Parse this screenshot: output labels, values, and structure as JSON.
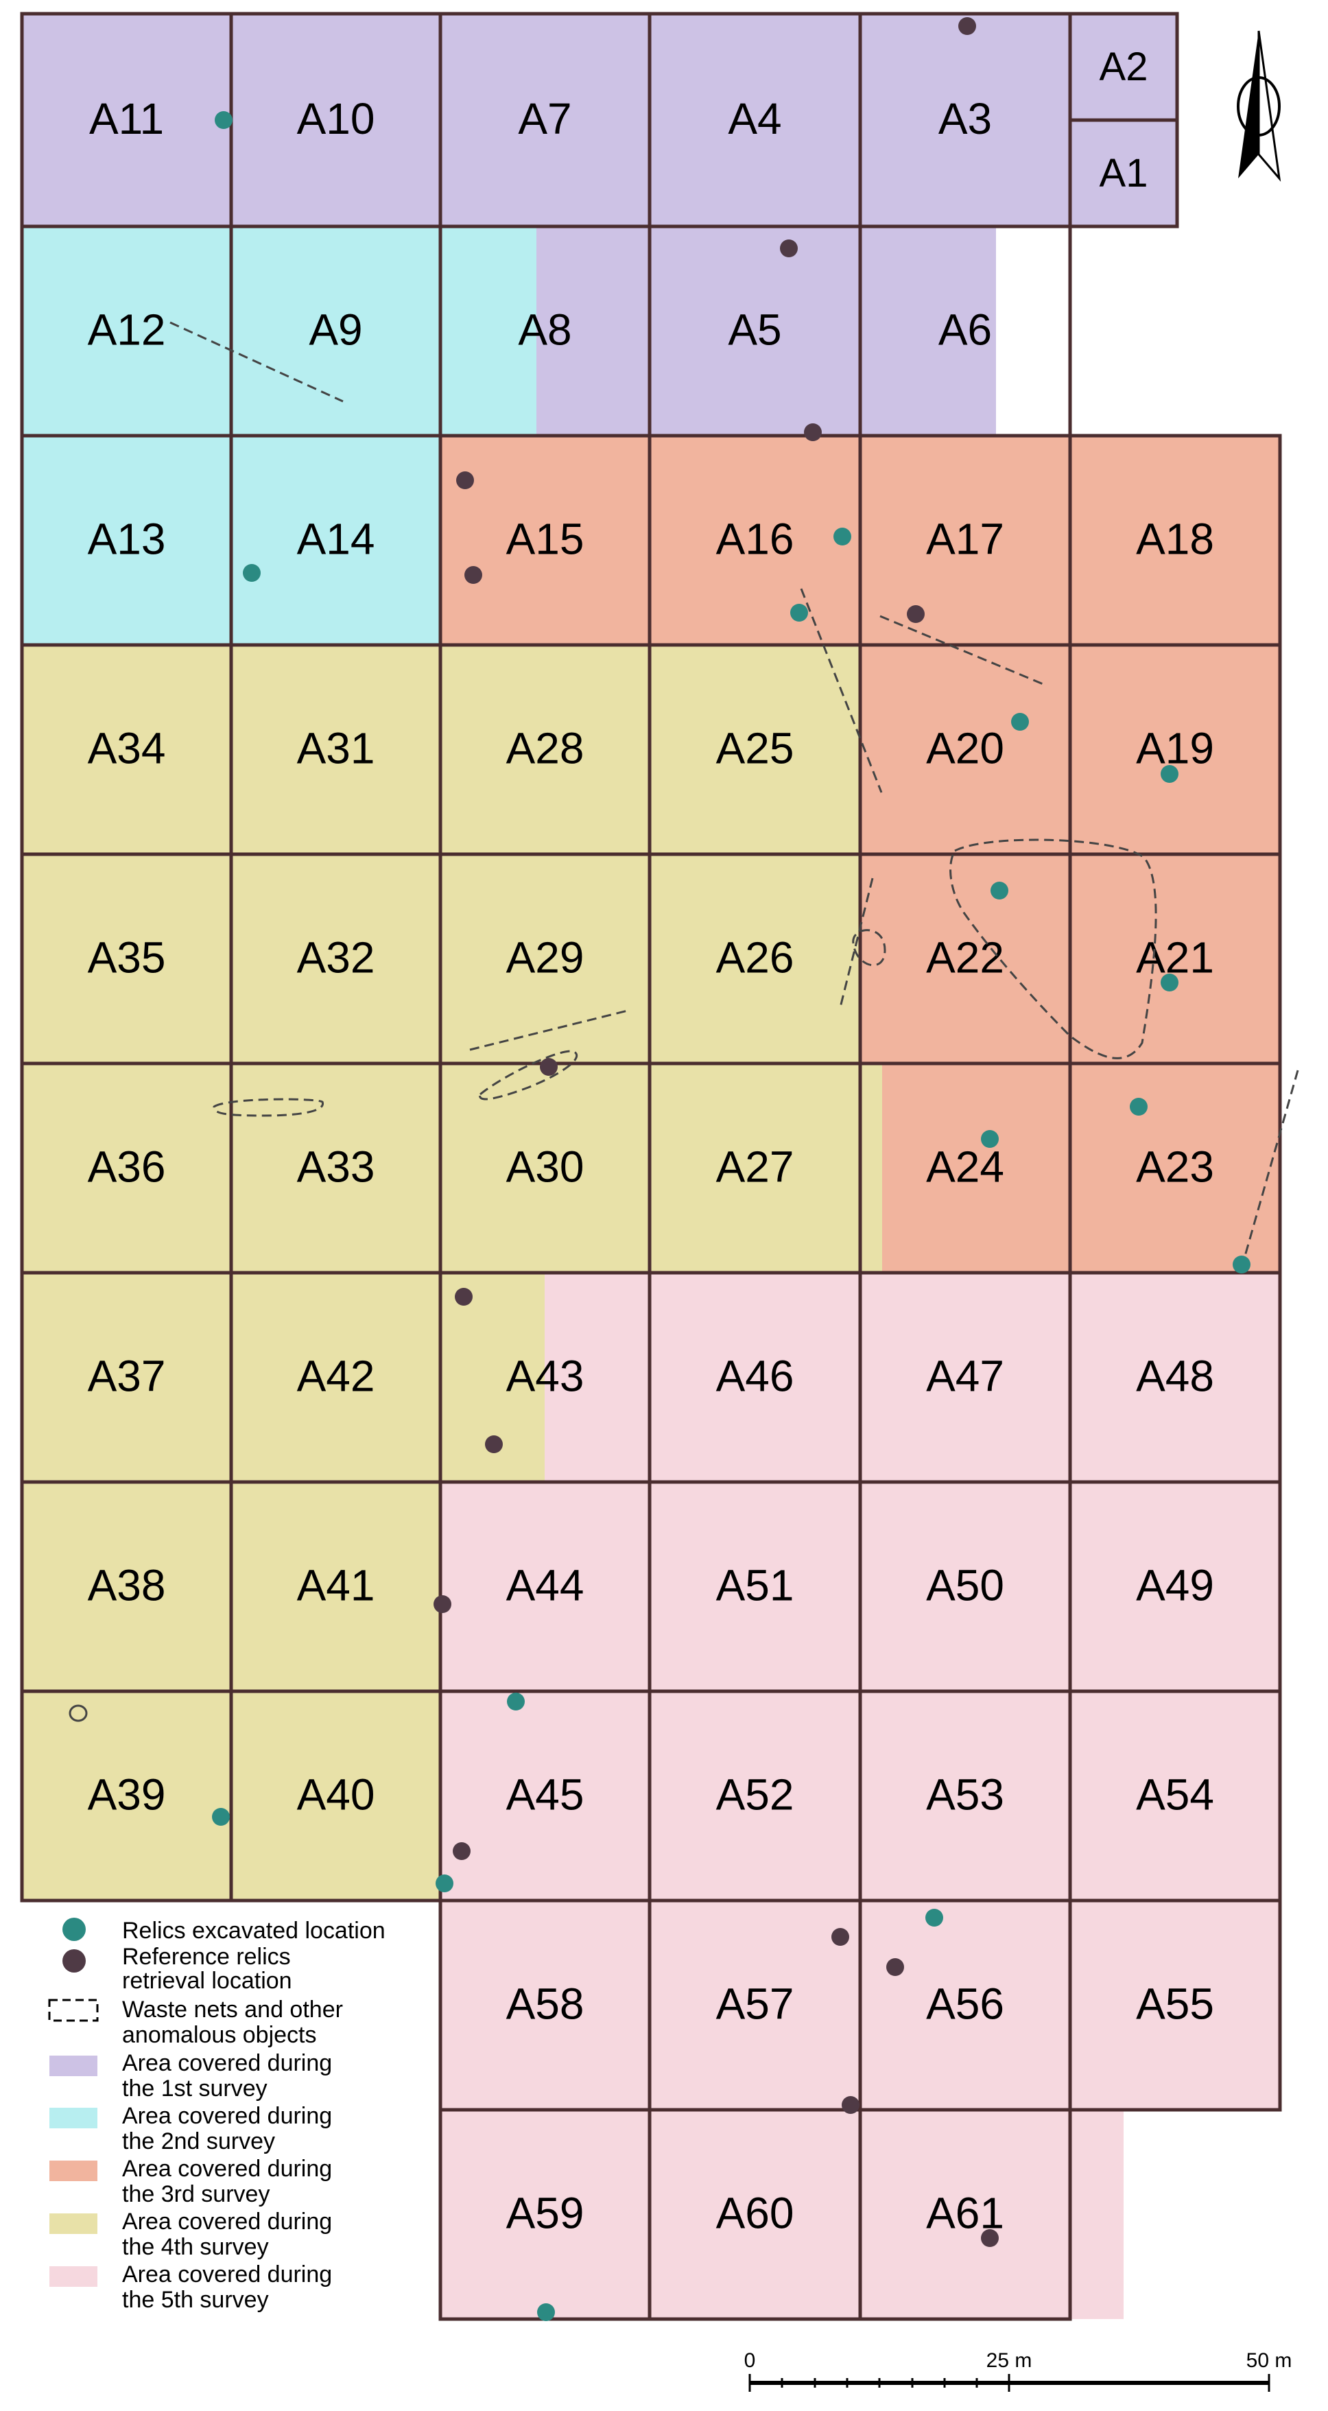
{
  "colors": {
    "survey1": "#cdc2e5",
    "survey2": "#b7eef0",
    "survey3": "#f1b49e",
    "survey4": "#e8e1a8",
    "survey5": "#f6d8df",
    "grid": "#4a2d2f",
    "excavated": "#2b8a82",
    "reference": "#4f3a45",
    "waste": "#444444"
  },
  "cells": [
    {
      "id": "A11",
      "c": 0,
      "r": 0,
      "s": 1
    },
    {
      "id": "A10",
      "c": 1,
      "r": 0,
      "s": 1
    },
    {
      "id": "A7",
      "c": 2,
      "r": 0,
      "s": 1
    },
    {
      "id": "A4",
      "c": 3,
      "r": 0,
      "s": 1
    },
    {
      "id": "A3",
      "c": 4,
      "r": 0,
      "s": 1
    },
    {
      "id": "A12",
      "c": 0,
      "r": 1,
      "s": 2
    },
    {
      "id": "A9",
      "c": 1,
      "r": 1,
      "s": 2
    },
    {
      "id": "A8",
      "c": 2,
      "r": 1,
      "s": 1
    },
    {
      "id": "A5",
      "c": 3,
      "r": 1,
      "s": 1
    },
    {
      "id": "A6",
      "c": 4,
      "r": 1,
      "s": 1
    },
    {
      "id": "A13",
      "c": 0,
      "r": 2,
      "s": 2
    },
    {
      "id": "A14",
      "c": 1,
      "r": 2,
      "s": 2
    },
    {
      "id": "A15",
      "c": 2,
      "r": 2,
      "s": 3
    },
    {
      "id": "A16",
      "c": 3,
      "r": 2,
      "s": 3
    },
    {
      "id": "A17",
      "c": 4,
      "r": 2,
      "s": 3
    },
    {
      "id": "A18",
      "c": 5,
      "r": 2,
      "s": 3
    },
    {
      "id": "A34",
      "c": 0,
      "r": 3,
      "s": 4
    },
    {
      "id": "A31",
      "c": 1,
      "r": 3,
      "s": 4
    },
    {
      "id": "A28",
      "c": 2,
      "r": 3,
      "s": 4
    },
    {
      "id": "A25",
      "c": 3,
      "r": 3,
      "s": 4
    },
    {
      "id": "A20",
      "c": 4,
      "r": 3,
      "s": 3
    },
    {
      "id": "A19",
      "c": 5,
      "r": 3,
      "s": 3
    },
    {
      "id": "A35",
      "c": 0,
      "r": 4,
      "s": 4
    },
    {
      "id": "A32",
      "c": 1,
      "r": 4,
      "s": 4
    },
    {
      "id": "A29",
      "c": 2,
      "r": 4,
      "s": 4
    },
    {
      "id": "A26",
      "c": 3,
      "r": 4,
      "s": 4
    },
    {
      "id": "A22",
      "c": 4,
      "r": 4,
      "s": 3
    },
    {
      "id": "A21",
      "c": 5,
      "r": 4,
      "s": 3
    },
    {
      "id": "A36",
      "c": 0,
      "r": 5,
      "s": 4
    },
    {
      "id": "A33",
      "c": 1,
      "r": 5,
      "s": 4
    },
    {
      "id": "A30",
      "c": 2,
      "r": 5,
      "s": 4
    },
    {
      "id": "A27",
      "c": 3,
      "r": 5,
      "s": 4
    },
    {
      "id": "A24",
      "c": 4,
      "r": 5,
      "s": 3
    },
    {
      "id": "A23",
      "c": 5,
      "r": 5,
      "s": 3
    },
    {
      "id": "A37",
      "c": 0,
      "r": 6,
      "s": 4
    },
    {
      "id": "A42",
      "c": 1,
      "r": 6,
      "s": 4
    },
    {
      "id": "A43",
      "c": 2,
      "r": 6,
      "s": 5
    },
    {
      "id": "A46",
      "c": 3,
      "r": 6,
      "s": 5
    },
    {
      "id": "A47",
      "c": 4,
      "r": 6,
      "s": 5
    },
    {
      "id": "A48",
      "c": 5,
      "r": 6,
      "s": 5
    },
    {
      "id": "A38",
      "c": 0,
      "r": 7,
      "s": 4
    },
    {
      "id": "A41",
      "c": 1,
      "r": 7,
      "s": 4
    },
    {
      "id": "A44",
      "c": 2,
      "r": 7,
      "s": 5
    },
    {
      "id": "A51",
      "c": 3,
      "r": 7,
      "s": 5
    },
    {
      "id": "A50",
      "c": 4,
      "r": 7,
      "s": 5
    },
    {
      "id": "A49",
      "c": 5,
      "r": 7,
      "s": 5
    },
    {
      "id": "A39",
      "c": 0,
      "r": 8,
      "s": 4
    },
    {
      "id": "A40",
      "c": 1,
      "r": 8,
      "s": 4
    },
    {
      "id": "A45",
      "c": 2,
      "r": 8,
      "s": 5
    },
    {
      "id": "A52",
      "c": 3,
      "r": 8,
      "s": 5
    },
    {
      "id": "A53",
      "c": 4,
      "r": 8,
      "s": 5
    },
    {
      "id": "A54",
      "c": 5,
      "r": 8,
      "s": 5
    },
    {
      "id": "A58",
      "c": 2,
      "r": 9,
      "s": 5
    },
    {
      "id": "A57",
      "c": 3,
      "r": 9,
      "s": 5
    },
    {
      "id": "A56",
      "c": 4,
      "r": 9,
      "s": 5
    },
    {
      "id": "A55",
      "c": 5,
      "r": 9,
      "s": 5
    },
    {
      "id": "A59",
      "c": 2,
      "r": 10,
      "s": 5
    },
    {
      "id": "A60",
      "c": 3,
      "r": 10,
      "s": 5
    },
    {
      "id": "A61",
      "c": 4,
      "r": 10,
      "s": 5
    }
  ],
  "small_cells": [
    {
      "id": "A2",
      "s": 1
    },
    {
      "id": "A1",
      "s": 1
    }
  ],
  "legend": {
    "excavated": "Relics excavated location",
    "reference": [
      "Reference relics",
      "retrieval location"
    ],
    "waste": [
      "Waste nets and other",
      "anomalous objects"
    ],
    "survey1": [
      "Area covered during",
      "the 1st survey"
    ],
    "survey2": [
      "Area covered during",
      "the 2nd survey"
    ],
    "survey3": [
      "Area covered during",
      "the 3rd survey"
    ],
    "survey4": [
      "Area covered during",
      "the 4th survey"
    ],
    "survey5": [
      "Area covered during",
      "the 5th survey"
    ]
  },
  "scale": {
    "labels": [
      "0",
      "25 m",
      "50 m"
    ]
  },
  "north_arrow": "north-arrow-icon"
}
